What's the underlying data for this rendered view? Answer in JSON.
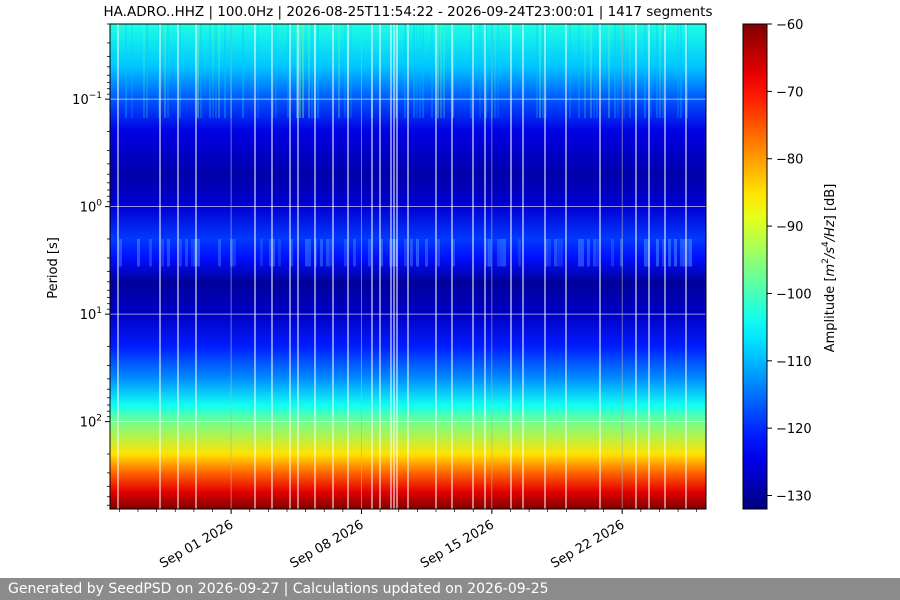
{
  "footer": {
    "text": "Generated by SeedPSD on 2026-09-27 | Calculations updated on 2026-09-25"
  },
  "chart_data": {
    "type": "heatmap",
    "title": "HA.ADRO..HHZ | 100.0Hz | 2026-08-25T11:54:22 - 2026-09-24T23:00:01 | 1417 segments",
    "ylabel": "Period [s]",
    "yscale": "log",
    "y_inverted": true,
    "ylim": [
      0.02,
      650
    ],
    "y_ticks": [
      {
        "value": 0.1,
        "base": "10",
        "exp": "−1"
      },
      {
        "value": 1,
        "base": "10",
        "exp": "0"
      },
      {
        "value": 10,
        "base": "10",
        "exp": "1"
      },
      {
        "value": 100,
        "base": "10",
        "exp": "2"
      }
    ],
    "x_type": "date",
    "xlim": [
      "2026-08-25T11:54:22",
      "2026-09-26T12:00:00"
    ],
    "x_ticks": [
      {
        "date": "2026-09-01",
        "label": "Sep 01 2026"
      },
      {
        "date": "2026-09-08",
        "label": "Sep 08 2026"
      },
      {
        "date": "2026-09-15",
        "label": "Sep 15 2026"
      },
      {
        "date": "2026-09-22",
        "label": "Sep 22 2026"
      }
    ],
    "grid": true,
    "colorbar": {
      "label_prefix": "Amplitude [",
      "label_math": "m",
      "label_mid": "/s",
      "label_unit_end": "/Hz",
      "label_suffix": "] [dB]",
      "sup1": "2",
      "sup2": "4",
      "range": [
        -132,
        -60
      ],
      "ticks": [
        {
          "value": -60,
          "label": "−60"
        },
        {
          "value": -70,
          "label": "−70"
        },
        {
          "value": -80,
          "label": "−80"
        },
        {
          "value": -90,
          "label": "−90"
        },
        {
          "value": -100,
          "label": "−100"
        },
        {
          "value": -110,
          "label": "−110"
        },
        {
          "value": -120,
          "label": "−120"
        },
        {
          "value": -130,
          "label": "−130"
        }
      ],
      "colormap": "jet"
    },
    "profile": [
      {
        "period": 0.02,
        "db": -103
      },
      {
        "period": 0.05,
        "db": -109
      },
      {
        "period": 0.1,
        "db": -117
      },
      {
        "period": 0.2,
        "db": -125
      },
      {
        "period": 0.5,
        "db": -129
      },
      {
        "period": 1.0,
        "db": -126
      },
      {
        "period": 2.0,
        "db": -119
      },
      {
        "period": 3.0,
        "db": -122
      },
      {
        "period": 5.0,
        "db": -130
      },
      {
        "period": 10,
        "db": -127
      },
      {
        "period": 20,
        "db": -121
      },
      {
        "period": 40,
        "db": -113
      },
      {
        "period": 70,
        "db": -104
      },
      {
        "period": 100,
        "db": -97
      },
      {
        "period": 200,
        "db": -85
      },
      {
        "period": 300,
        "db": -76
      },
      {
        "period": 450,
        "db": -67
      },
      {
        "period": 650,
        "db": -60
      }
    ]
  }
}
